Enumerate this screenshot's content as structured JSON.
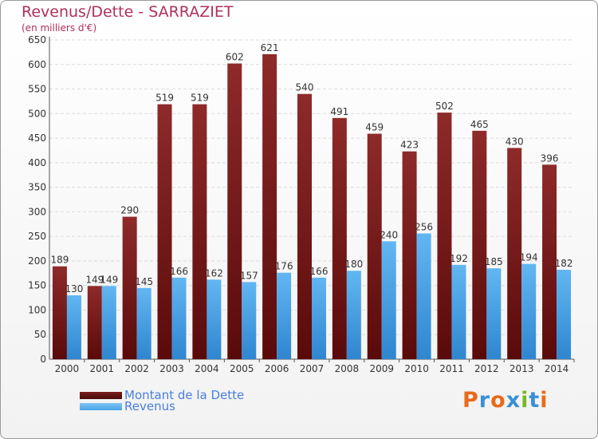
{
  "title": "Revenus/Dette - SARRAZIET",
  "subtitle": "(en milliers d'€)",
  "legend": [
    {
      "label": "Montant de la Dette",
      "color": "#7a1c1c"
    },
    {
      "label": "Revenus",
      "color": "#4aa3e8"
    }
  ],
  "logo": {
    "text": "Proxiti",
    "colors": [
      "#e86a1a",
      "#3a8fd6",
      "#e86a1a",
      "#3a8fd6",
      "#7ab828",
      "#3a8fd6",
      "#e86a1a"
    ]
  },
  "chart_data": {
    "type": "bar",
    "categories": [
      "2000",
      "2001",
      "2002",
      "2003",
      "2004",
      "2005",
      "2006",
      "2007",
      "2008",
      "2009",
      "2010",
      "2011",
      "2012",
      "2013",
      "2014"
    ],
    "series": [
      {
        "name": "Montant de la Dette",
        "values": [
          189,
          149,
          290,
          519,
          519,
          602,
          621,
          540,
          491,
          459,
          423,
          502,
          465,
          430,
          396
        ]
      },
      {
        "name": "Revenus",
        "values": [
          130,
          149,
          145,
          166,
          162,
          157,
          176,
          166,
          180,
          240,
          256,
          192,
          185,
          194,
          182
        ]
      }
    ],
    "yticks": [
      0,
      50,
      100,
      150,
      200,
      250,
      300,
      350,
      400,
      450,
      500,
      550,
      600,
      650
    ],
    "ylim": [
      0,
      650
    ],
    "grid": true
  }
}
